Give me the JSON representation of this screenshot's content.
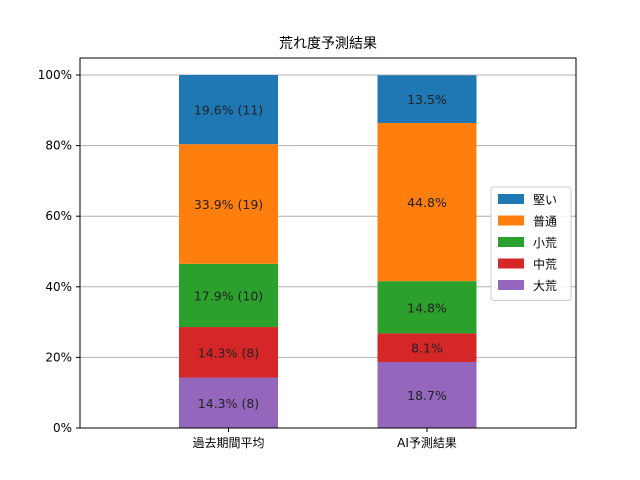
{
  "chart_data": {
    "type": "bar",
    "stacked": true,
    "title": "荒れ度予測結果",
    "xlabel": "",
    "ylabel": "",
    "ylim": [
      0,
      100
    ],
    "y_ticks": [
      "0%",
      "20%",
      "40%",
      "60%",
      "80%",
      "100%"
    ],
    "y_tick_values": [
      0,
      20,
      40,
      60,
      80,
      100
    ],
    "grid": "horizontal",
    "legend_position": "right",
    "categories": [
      "過去期間平均",
      "AI予測結果"
    ],
    "series": [
      {
        "name": "大荒",
        "color": "#9467bd",
        "values": [
          14.3,
          18.7
        ],
        "labels": [
          "14.3% (8)",
          "18.7%"
        ]
      },
      {
        "name": "中荒",
        "color": "#d62728",
        "values": [
          14.3,
          8.1
        ],
        "labels": [
          "14.3% (8)",
          "8.1%"
        ]
      },
      {
        "name": "小荒",
        "color": "#2ca02c",
        "values": [
          17.9,
          14.8
        ],
        "labels": [
          "17.9% (10)",
          "14.8%"
        ]
      },
      {
        "name": "普通",
        "color": "#ff7f0e",
        "values": [
          33.9,
          44.8
        ],
        "labels": [
          "33.9% (19)",
          "44.8%"
        ]
      },
      {
        "name": "堅い",
        "color": "#1f77b4",
        "values": [
          19.6,
          13.5
        ],
        "labels": [
          "19.6% (11)",
          "13.5%"
        ]
      }
    ],
    "legend_order": [
      "堅い",
      "普通",
      "小荒",
      "中荒",
      "大荒"
    ]
  }
}
